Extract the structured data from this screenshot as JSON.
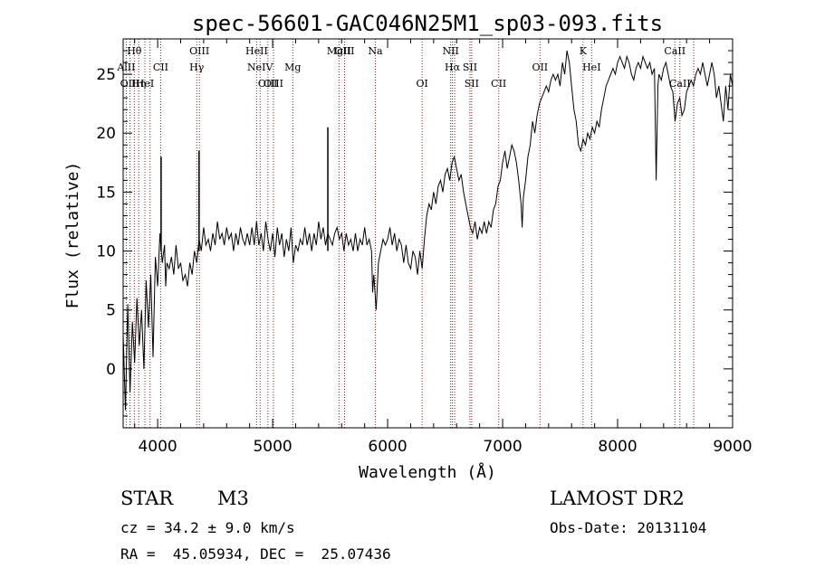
{
  "chart_data": {
    "type": "line",
    "title": "spec-56601-GAC046N25M1_sp03-093.fits",
    "xlabel": "Wavelength (Å)",
    "ylabel": "Flux (relative)",
    "xlim": [
      3700,
      9000
    ],
    "ylim": [
      -5,
      28
    ],
    "x_ticks": [
      4000,
      5000,
      6000,
      7000,
      8000,
      9000
    ],
    "y_ticks": [
      0,
      5,
      10,
      15,
      20,
      25
    ],
    "grid": false,
    "line_color": "#000000",
    "marker_color": "#8b1a1a",
    "spectrum": [
      [
        3700,
        3.0
      ],
      [
        3720,
        -3.5
      ],
      [
        3740,
        5.5
      ],
      [
        3760,
        -2.0
      ],
      [
        3780,
        4.0
      ],
      [
        3800,
        0.5
      ],
      [
        3820,
        6.0
      ],
      [
        3840,
        2.0
      ],
      [
        3860,
        5.0
      ],
      [
        3880,
        0.0
      ],
      [
        3900,
        7.5
      ],
      [
        3920,
        3.5
      ],
      [
        3940,
        8.0
      ],
      [
        3960,
        1.0
      ],
      [
        3980,
        9.5
      ],
      [
        4000,
        7.0
      ],
      [
        4020,
        11.5
      ],
      [
        4040,
        9.0
      ],
      [
        4060,
        10.5
      ],
      [
        4070,
        7.0
      ],
      [
        4080,
        9.0
      ],
      [
        4100,
        8.5
      ],
      [
        4120,
        9.5
      ],
      [
        4140,
        8.0
      ],
      [
        4160,
        10.5
      ],
      [
        4180,
        8.5
      ],
      [
        4200,
        9.0
      ],
      [
        4220,
        7.5
      ],
      [
        4240,
        8.0
      ],
      [
        4260,
        7.0
      ],
      [
        4280,
        9.0
      ],
      [
        4300,
        8.0
      ],
      [
        4320,
        10.0
      ],
      [
        4340,
        9.0
      ],
      [
        4360,
        11.0
      ],
      [
        4380,
        10.0
      ],
      [
        4400,
        12.0
      ],
      [
        4420,
        10.5
      ],
      [
        4440,
        11.0
      ],
      [
        4460,
        10.0
      ],
      [
        4480,
        11.5
      ],
      [
        4500,
        10.5
      ],
      [
        4520,
        12.5
      ],
      [
        4540,
        11.0
      ],
      [
        4560,
        11.5
      ],
      [
        4580,
        10.5
      ],
      [
        4600,
        12.0
      ],
      [
        4620,
        11.0
      ],
      [
        4640,
        11.5
      ],
      [
        4660,
        10.0
      ],
      [
        4680,
        11.5
      ],
      [
        4700,
        10.5
      ],
      [
        4720,
        12.0
      ],
      [
        4740,
        11.0
      ],
      [
        4760,
        10.5
      ],
      [
        4780,
        11.5
      ],
      [
        4800,
        10.5
      ],
      [
        4820,
        12.0
      ],
      [
        4840,
        10.5
      ],
      [
        4860,
        12.5
      ],
      [
        4880,
        10.5
      ],
      [
        4900,
        11.5
      ],
      [
        4920,
        10.0
      ],
      [
        4940,
        12.5
      ],
      [
        4960,
        11.0
      ],
      [
        4980,
        10.0
      ],
      [
        5000,
        11.5
      ],
      [
        5020,
        9.5
      ],
      [
        5040,
        12.0
      ],
      [
        5060,
        10.5
      ],
      [
        5080,
        11.5
      ],
      [
        5100,
        9.5
      ],
      [
        5120,
        11.0
      ],
      [
        5140,
        10.0
      ],
      [
        5160,
        12.0
      ],
      [
        5180,
        9.0
      ],
      [
        5200,
        10.5
      ],
      [
        5220,
        10.0
      ],
      [
        5240,
        11.0
      ],
      [
        5260,
        10.5
      ],
      [
        5280,
        12.0
      ],
      [
        5300,
        10.5
      ],
      [
        5320,
        11.5
      ],
      [
        5340,
        10.0
      ],
      [
        5360,
        11.5
      ],
      [
        5380,
        10.5
      ],
      [
        5400,
        12.5
      ],
      [
        5420,
        11.0
      ],
      [
        5440,
        12.0
      ],
      [
        5460,
        10.5
      ],
      [
        5480,
        11.5
      ],
      [
        5500,
        11.0
      ],
      [
        5520,
        10.5
      ],
      [
        5540,
        11.5
      ],
      [
        5560,
        12.0
      ],
      [
        5580,
        11.0
      ],
      [
        5600,
        11.5
      ],
      [
        5620,
        10.0
      ],
      [
        5640,
        11.5
      ],
      [
        5660,
        10.5
      ],
      [
        5680,
        11.0
      ],
      [
        5700,
        10.0
      ],
      [
        5720,
        11.5
      ],
      [
        5740,
        10.0
      ],
      [
        5760,
        11.0
      ],
      [
        5780,
        10.5
      ],
      [
        5800,
        12.0
      ],
      [
        5820,
        10.5
      ],
      [
        5840,
        11.0
      ],
      [
        5860,
        10.0
      ],
      [
        5870,
        6.5
      ],
      [
        5880,
        8.0
      ],
      [
        5900,
        5.0
      ],
      [
        5920,
        9.0
      ],
      [
        5940,
        10.0
      ],
      [
        5960,
        11.0
      ],
      [
        5980,
        10.5
      ],
      [
        6000,
        11.0
      ],
      [
        6020,
        12.0
      ],
      [
        6040,
        10.5
      ],
      [
        6060,
        11.5
      ],
      [
        6080,
        10.0
      ],
      [
        6100,
        11.0
      ],
      [
        6120,
        10.5
      ],
      [
        6140,
        9.0
      ],
      [
        6160,
        10.5
      ],
      [
        6180,
        9.0
      ],
      [
        6200,
        8.5
      ],
      [
        6220,
        10.0
      ],
      [
        6240,
        9.5
      ],
      [
        6260,
        8.0
      ],
      [
        6280,
        10.0
      ],
      [
        6300,
        8.5
      ],
      [
        6320,
        11.0
      ],
      [
        6340,
        13.0
      ],
      [
        6360,
        14.0
      ],
      [
        6380,
        13.5
      ],
      [
        6400,
        15.0
      ],
      [
        6420,
        14.0
      ],
      [
        6440,
        15.5
      ],
      [
        6460,
        16.0
      ],
      [
        6480,
        15.0
      ],
      [
        6500,
        16.5
      ],
      [
        6520,
        17.0
      ],
      [
        6540,
        16.0
      ],
      [
        6560,
        17.5
      ],
      [
        6580,
        18.0
      ],
      [
        6600,
        17.0
      ],
      [
        6620,
        16.0
      ],
      [
        6640,
        16.5
      ],
      [
        6660,
        15.0
      ],
      [
        6680,
        14.0
      ],
      [
        6700,
        13.0
      ],
      [
        6720,
        12.0
      ],
      [
        6740,
        11.5
      ],
      [
        6760,
        12.5
      ],
      [
        6780,
        11.0
      ],
      [
        6800,
        12.0
      ],
      [
        6820,
        11.5
      ],
      [
        6840,
        12.5
      ],
      [
        6860,
        11.5
      ],
      [
        6880,
        12.5
      ],
      [
        6900,
        12.0
      ],
      [
        6920,
        13.5
      ],
      [
        6940,
        14.0
      ],
      [
        6960,
        15.5
      ],
      [
        6980,
        16.0
      ],
      [
        7000,
        17.5
      ],
      [
        7020,
        18.5
      ],
      [
        7040,
        17.0
      ],
      [
        7060,
        18.0
      ],
      [
        7080,
        19.0
      ],
      [
        7100,
        18.5
      ],
      [
        7120,
        17.5
      ],
      [
        7140,
        16.0
      ],
      [
        7160,
        14.0
      ],
      [
        7170,
        12.0
      ],
      [
        7180,
        14.5
      ],
      [
        7200,
        16.0
      ],
      [
        7220,
        18.0
      ],
      [
        7240,
        19.0
      ],
      [
        7260,
        21.0
      ],
      [
        7280,
        20.0
      ],
      [
        7300,
        21.5
      ],
      [
        7320,
        22.5
      ],
      [
        7340,
        23.0
      ],
      [
        7360,
        23.5
      ],
      [
        7380,
        24.0
      ],
      [
        7400,
        23.5
      ],
      [
        7420,
        24.5
      ],
      [
        7440,
        25.0
      ],
      [
        7460,
        24.5
      ],
      [
        7480,
        25.0
      ],
      [
        7500,
        24.0
      ],
      [
        7520,
        26.0
      ],
      [
        7540,
        25.0
      ],
      [
        7560,
        27.0
      ],
      [
        7580,
        26.0
      ],
      [
        7600,
        24.0
      ],
      [
        7620,
        22.0
      ],
      [
        7640,
        21.0
      ],
      [
        7660,
        19.0
      ],
      [
        7680,
        18.5
      ],
      [
        7700,
        19.5
      ],
      [
        7720,
        19.0
      ],
      [
        7740,
        20.0
      ],
      [
        7760,
        19.5
      ],
      [
        7780,
        20.5
      ],
      [
        7800,
        20.0
      ],
      [
        7820,
        21.0
      ],
      [
        7840,
        20.5
      ],
      [
        7860,
        22.0
      ],
      [
        7880,
        23.0
      ],
      [
        7900,
        24.0
      ],
      [
        7920,
        24.5
      ],
      [
        7940,
        25.0
      ],
      [
        7960,
        25.5
      ],
      [
        7980,
        25.0
      ],
      [
        8000,
        26.0
      ],
      [
        8020,
        26.5
      ],
      [
        8040,
        26.0
      ],
      [
        8060,
        25.5
      ],
      [
        8080,
        26.5
      ],
      [
        8100,
        26.0
      ],
      [
        8120,
        25.0
      ],
      [
        8140,
        24.5
      ],
      [
        8160,
        25.5
      ],
      [
        8180,
        26.0
      ],
      [
        8200,
        25.5
      ],
      [
        8220,
        26.5
      ],
      [
        8240,
        26.0
      ],
      [
        8260,
        25.5
      ],
      [
        8280,
        26.0
      ],
      [
        8300,
        25.0
      ],
      [
        8320,
        25.5
      ],
      [
        8335,
        16.0
      ],
      [
        8350,
        24.0
      ],
      [
        8360,
        25.0
      ],
      [
        8380,
        24.5
      ],
      [
        8400,
        25.5
      ],
      [
        8420,
        26.0
      ],
      [
        8440,
        25.0
      ],
      [
        8460,
        24.0
      ],
      [
        8480,
        23.5
      ],
      [
        8500,
        21.0
      ],
      [
        8520,
        22.5
      ],
      [
        8540,
        23.0
      ],
      [
        8560,
        21.5
      ],
      [
        8580,
        22.0
      ],
      [
        8600,
        23.5
      ],
      [
        8620,
        24.0
      ],
      [
        8640,
        24.5
      ],
      [
        8660,
        24.0
      ],
      [
        8680,
        25.0
      ],
      [
        8700,
        25.5
      ],
      [
        8720,
        25.0
      ],
      [
        8740,
        26.0
      ],
      [
        8760,
        25.0
      ],
      [
        8780,
        24.0
      ],
      [
        8800,
        25.0
      ],
      [
        8820,
        26.0
      ],
      [
        8840,
        25.0
      ],
      [
        8860,
        23.0
      ],
      [
        8880,
        24.0
      ],
      [
        8900,
        22.5
      ],
      [
        8920,
        21.0
      ],
      [
        8940,
        24.0
      ],
      [
        8960,
        22.0
      ],
      [
        8980,
        25.0
      ],
      [
        9000,
        24.0
      ]
    ],
    "spikes": [
      {
        "x": 4030,
        "y": 18.0
      },
      {
        "x": 4360,
        "y": 18.5
      },
      {
        "x": 5480,
        "y": 20.5
      }
    ],
    "lines": [
      {
        "x": 3727,
        "name": "AlII",
        "row": 2
      },
      {
        "x": 3760,
        "name": "OIII",
        "row": 3
      },
      {
        "x": 3797,
        "name": "Hθ",
        "row": 1
      },
      {
        "x": 3835,
        "name": "Hη",
        "row": 3
      },
      {
        "x": 3889,
        "name": "HeI",
        "row": 3
      },
      {
        "x": 3934,
        "name": "",
        "row": 0
      },
      {
        "x": 4026,
        "name": "CII",
        "row": 2
      },
      {
        "x": 4340,
        "name": "Hγ",
        "row": 2
      },
      {
        "x": 4363,
        "name": "OIII",
        "row": 1
      },
      {
        "x": 4861,
        "name": "HeII",
        "row": 1
      },
      {
        "x": 4891,
        "name": "NeIV",
        "row": 2
      },
      {
        "x": 4959,
        "name": "OIII",
        "row": 3
      },
      {
        "x": 5007,
        "name": "OIII",
        "row": 3
      },
      {
        "x": 5175,
        "name": "Mg",
        "row": 2
      },
      {
        "x": 5577,
        "name": "MgII",
        "row": 1
      },
      {
        "x": 5625,
        "name": "OIII",
        "row": 1
      },
      {
        "x": 5893,
        "name": "Na",
        "row": 1
      },
      {
        "x": 6300,
        "name": "OI",
        "row": 3
      },
      {
        "x": 6548,
        "name": "NII",
        "row": 1
      },
      {
        "x": 6563,
        "name": "Hα",
        "row": 2
      },
      {
        "x": 6583,
        "name": "",
        "row": 0
      },
      {
        "x": 6716,
        "name": "SII",
        "row": 2
      },
      {
        "x": 6731,
        "name": "SII",
        "row": 3
      },
      {
        "x": 6966,
        "name": "CII",
        "row": 3
      },
      {
        "x": 7325,
        "name": "OII",
        "row": 2
      },
      {
        "x": 7774,
        "name": "HeI",
        "row": 2
      },
      {
        "x": 7699,
        "name": "K",
        "row": 1
      },
      {
        "x": 8498,
        "name": "CaII",
        "row": 1
      },
      {
        "x": 8542,
        "name": "CaII",
        "row": 3
      },
      {
        "x": 8662,
        "name": "",
        "row": 0
      }
    ]
  },
  "footer": {
    "obj_class": "STAR",
    "obj_subclass": "M3",
    "survey": "LAMOST DR2",
    "cz": "cz = 34.2 ± 9.0 km/s",
    "obs_date": "Obs-Date: 20131104",
    "radec": "RA =  45.05934, DEC =  25.07436"
  }
}
